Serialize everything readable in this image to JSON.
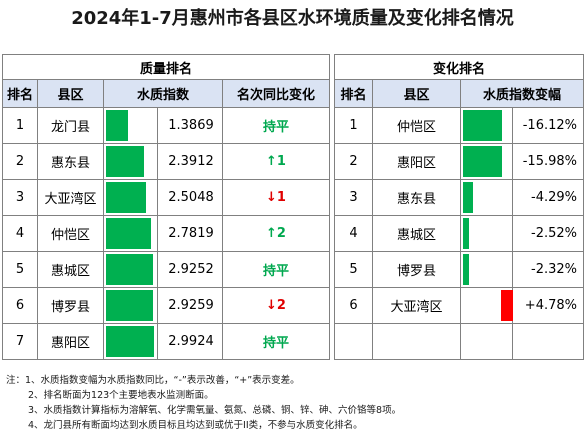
{
  "title": "2024年1-7月惠州市各县区水环境质量及变化排名情况",
  "left": {
    "section": "质量排名",
    "headers": [
      "排名",
      "县区",
      "水质指数",
      "名次同比变化"
    ],
    "rows": [
      {
        "rank": "1",
        "district": "龙门县",
        "index": "1.3869",
        "index_value": 1.3869,
        "change": "持平",
        "change_color": "#00a84f"
      },
      {
        "rank": "2",
        "district": "惠东县",
        "index": "2.3912",
        "index_value": 2.3912,
        "change": "↑1",
        "change_color": "#00a84f"
      },
      {
        "rank": "3",
        "district": "大亚湾区",
        "index": "2.5048",
        "index_value": 2.5048,
        "change": "↓1",
        "change_color": "#e00000"
      },
      {
        "rank": "4",
        "district": "仲恺区",
        "index": "2.7819",
        "index_value": 2.7819,
        "change": "↑2",
        "change_color": "#00a84f"
      },
      {
        "rank": "5",
        "district": "惠城区",
        "index": "2.9252",
        "index_value": 2.9252,
        "change": "持平",
        "change_color": "#00a84f"
      },
      {
        "rank": "6",
        "district": "博罗县",
        "index": "2.9259",
        "index_value": 2.9259,
        "change": "↓2",
        "change_color": "#e00000"
      },
      {
        "rank": "7",
        "district": "惠阳区",
        "index": "2.9924",
        "index_value": 2.9924,
        "change": "持平",
        "change_color": "#00a84f"
      }
    ]
  },
  "right": {
    "section": "变化排名",
    "headers": [
      "排名",
      "县区",
      "水质指数变幅"
    ],
    "rows": [
      {
        "rank": "1",
        "district": "仲恺区",
        "change": "-16.12%",
        "change_value": -16.12,
        "color": "#00b050"
      },
      {
        "rank": "2",
        "district": "惠阳区",
        "change": "-15.98%",
        "change_value": -15.98,
        "color": "#00b050"
      },
      {
        "rank": "3",
        "district": "惠东县",
        "change": "-4.29%",
        "change_value": -4.29,
        "color": "#00b050"
      },
      {
        "rank": "4",
        "district": "惠城区",
        "change": "-2.52%",
        "change_value": -2.52,
        "color": "#00b050"
      },
      {
        "rank": "5",
        "district": "博罗县",
        "change": "-2.32%",
        "change_value": -2.32,
        "color": "#00b050"
      },
      {
        "rank": "6",
        "district": "大亚湾区",
        "change": "+4.78%",
        "change_value": 4.78,
        "color": "#ff0000"
      },
      {
        "rank": "",
        "district": "",
        "change": "",
        "change_value": null,
        "color": ""
      }
    ]
  },
  "notes": [
    "注：1、水质指数变幅为水质指数同比，“-”表示改善，“+”表示变差。",
    "2、排名断面为123个主要地表水监测断面。",
    "3、水质指数计算指标为溶解氧、化学需氧量、氨氮、总磷、铜、锌、砷、六价铬等8项。",
    "4、龙门县所有断面均达到水质目标且均达到或优于II类，不参与水质变化排名。"
  ]
}
